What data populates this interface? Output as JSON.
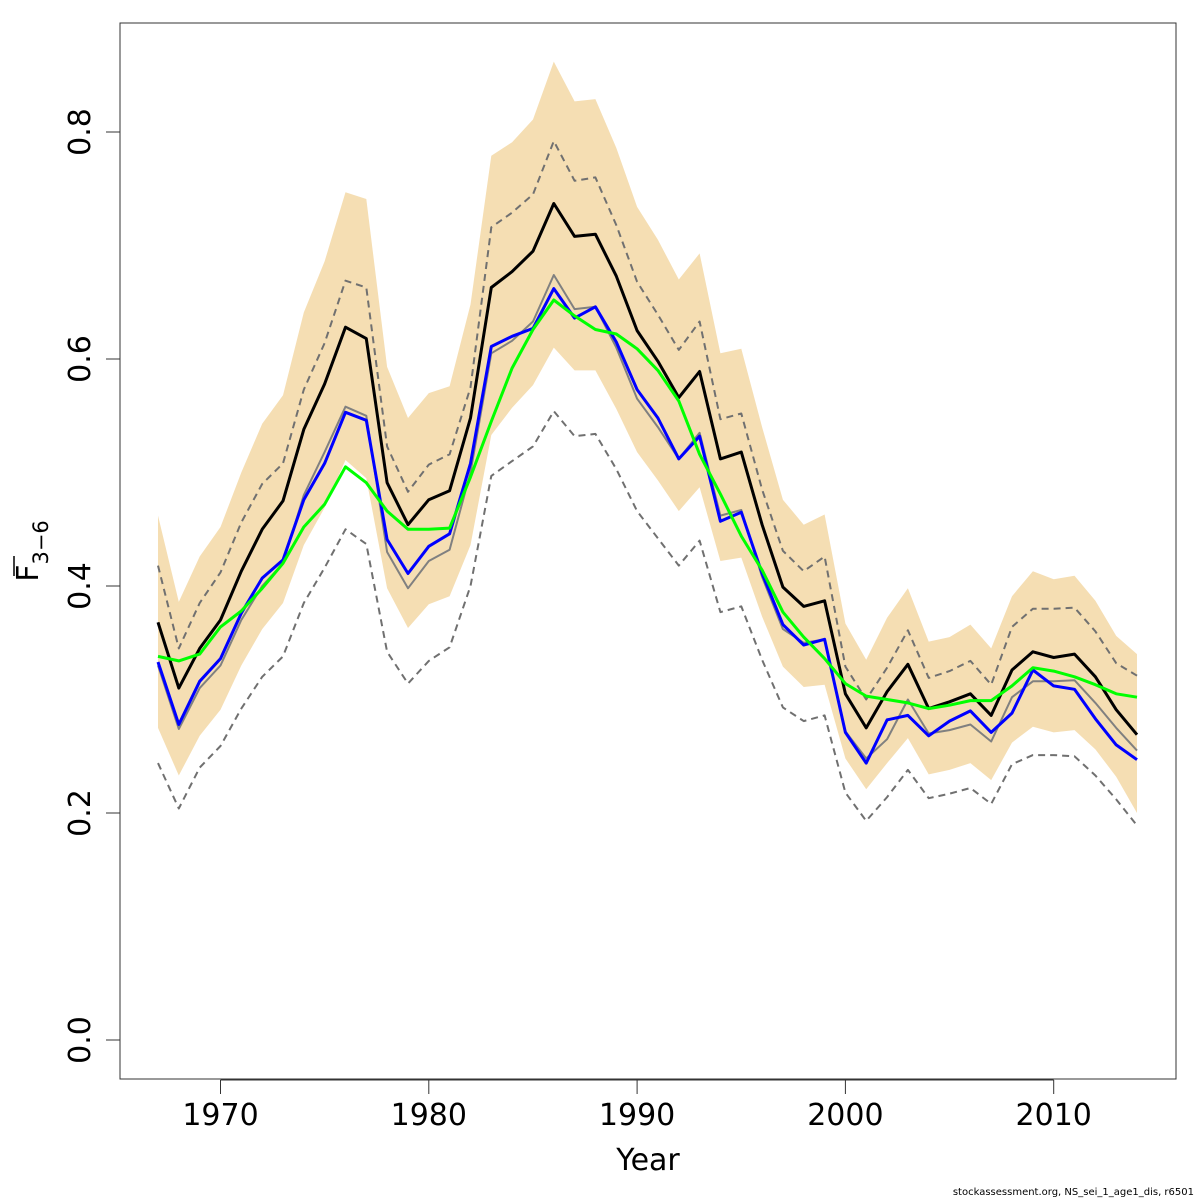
{
  "chart_data": {
    "type": "line",
    "xlabel": "Year",
    "ylabel": {
      "main": "F",
      "subscript": "3−6"
    },
    "xlim": [
      1967,
      2014
    ],
    "ylim": [
      0.0,
      0.8
    ],
    "x_ticks": [
      1970,
      1980,
      1990,
      2000,
      2010
    ],
    "y_ticks": [
      "0.0",
      "0.2",
      "0.4",
      "0.6",
      "0.8"
    ],
    "years": [
      1967,
      1968,
      1969,
      1970,
      1971,
      1972,
      1973,
      1974,
      1975,
      1976,
      1977,
      1978,
      1979,
      1980,
      1981,
      1982,
      1983,
      1984,
      1985,
      1986,
      1987,
      1988,
      1989,
      1990,
      1991,
      1992,
      1993,
      1994,
      1995,
      1996,
      1997,
      1998,
      1999,
      2000,
      2001,
      2002,
      2003,
      2004,
      2005,
      2006,
      2007,
      2008,
      2009,
      2010,
      2011,
      2012,
      2013,
      2014
    ],
    "band": {
      "color": "#f5deb3",
      "upper": [
        0.462,
        0.386,
        0.426,
        0.452,
        0.5,
        0.543,
        0.568,
        0.641,
        0.686,
        0.747,
        0.741,
        0.593,
        0.548,
        0.57,
        0.576,
        0.648,
        0.779,
        0.791,
        0.811,
        0.862,
        0.827,
        0.829,
        0.786,
        0.734,
        0.705,
        0.67,
        0.693,
        0.605,
        0.609,
        0.54,
        0.476,
        0.454,
        0.463,
        0.367,
        0.335,
        0.372,
        0.398,
        0.351,
        0.355,
        0.366,
        0.345,
        0.391,
        0.413,
        0.406,
        0.409,
        0.387,
        0.356,
        0.34
      ],
      "lower": [
        0.275,
        0.233,
        0.268,
        0.291,
        0.33,
        0.362,
        0.385,
        0.436,
        0.469,
        0.511,
        0.495,
        0.398,
        0.363,
        0.384,
        0.391,
        0.436,
        0.533,
        0.557,
        0.577,
        0.61,
        0.59,
        0.59,
        0.556,
        0.518,
        0.493,
        0.466,
        0.487,
        0.422,
        0.425,
        0.373,
        0.329,
        0.311,
        0.313,
        0.248,
        0.221,
        0.244,
        0.266,
        0.234,
        0.238,
        0.244,
        0.229,
        0.262,
        0.276,
        0.271,
        0.273,
        0.256,
        0.232,
        0.2
      ]
    },
    "series": [
      {
        "color": "#707070",
        "dash": true,
        "width": 2,
        "values": [
          0.418,
          0.345,
          0.385,
          0.412,
          0.456,
          0.49,
          0.508,
          0.573,
          0.614,
          0.669,
          0.663,
          0.523,
          0.483,
          0.507,
          0.516,
          0.575,
          0.716,
          0.729,
          0.745,
          0.792,
          0.757,
          0.76,
          0.718,
          0.668,
          0.639,
          0.608,
          0.633,
          0.547,
          0.552,
          0.485,
          0.431,
          0.413,
          0.426,
          0.329,
          0.3,
          0.328,
          0.361,
          0.319,
          0.325,
          0.334,
          0.313,
          0.364,
          0.38,
          0.38,
          0.381,
          0.36,
          0.332,
          0.321
        ]
      },
      {
        "color": "#707070",
        "dash": true,
        "width": 2,
        "values": [
          0.244,
          0.204,
          0.24,
          0.259,
          0.292,
          0.32,
          0.338,
          0.385,
          0.416,
          0.45,
          0.437,
          0.342,
          0.314,
          0.334,
          0.346,
          0.4,
          0.497,
          0.51,
          0.523,
          0.554,
          0.532,
          0.534,
          0.503,
          0.466,
          0.442,
          0.418,
          0.44,
          0.377,
          0.382,
          0.335,
          0.293,
          0.281,
          0.286,
          0.218,
          0.193,
          0.214,
          0.238,
          0.213,
          0.217,
          0.222,
          0.208,
          0.243,
          0.251,
          0.251,
          0.25,
          0.233,
          0.212,
          0.189
        ]
      },
      {
        "color": "#808080",
        "dash": false,
        "width": 2,
        "values": [
          0.33,
          0.274,
          0.31,
          0.33,
          0.37,
          0.4,
          0.42,
          0.48,
          0.518,
          0.558,
          0.55,
          0.43,
          0.398,
          0.422,
          0.432,
          0.5,
          0.605,
          0.616,
          0.633,
          0.674,
          0.644,
          0.646,
          0.61,
          0.565,
          0.54,
          0.512,
          0.535,
          0.462,
          0.467,
          0.408,
          0.362,
          0.35,
          0.353,
          0.272,
          0.248,
          0.265,
          0.3,
          0.27,
          0.273,
          0.278,
          0.263,
          0.302,
          0.316,
          0.316,
          0.317,
          0.297,
          0.275,
          0.255
        ]
      },
      {
        "color": "#000000",
        "dash": false,
        "width": 3,
        "values": [
          0.368,
          0.31,
          0.345,
          0.37,
          0.413,
          0.45,
          0.475,
          0.538,
          0.578,
          0.628,
          0.618,
          0.491,
          0.454,
          0.476,
          0.484,
          0.548,
          0.663,
          0.677,
          0.695,
          0.737,
          0.708,
          0.71,
          0.673,
          0.625,
          0.598,
          0.566,
          0.589,
          0.512,
          0.518,
          0.454,
          0.399,
          0.382,
          0.387,
          0.305,
          0.275,
          0.307,
          0.331,
          0.292,
          0.298,
          0.305,
          0.286,
          0.326,
          0.342,
          0.337,
          0.34,
          0.32,
          0.291,
          0.269
        ]
      },
      {
        "color": "#0000ff",
        "dash": false,
        "width": 3,
        "values": [
          0.333,
          0.278,
          0.316,
          0.336,
          0.376,
          0.407,
          0.423,
          0.476,
          0.508,
          0.553,
          0.546,
          0.441,
          0.411,
          0.435,
          0.446,
          0.508,
          0.611,
          0.62,
          0.627,
          0.662,
          0.636,
          0.646,
          0.615,
          0.573,
          0.548,
          0.512,
          0.532,
          0.457,
          0.465,
          0.411,
          0.366,
          0.348,
          0.353,
          0.271,
          0.244,
          0.282,
          0.286,
          0.268,
          0.281,
          0.29,
          0.271,
          0.288,
          0.326,
          0.312,
          0.309,
          0.283,
          0.26,
          0.247
        ]
      },
      {
        "color": "#00ff00",
        "dash": false,
        "width": 3,
        "values": [
          0.338,
          0.334,
          0.34,
          0.364,
          0.378,
          0.398,
          0.42,
          0.452,
          0.472,
          0.505,
          0.491,
          0.466,
          0.45,
          0.45,
          0.451,
          0.496,
          0.545,
          0.592,
          0.626,
          0.652,
          0.638,
          0.626,
          0.622,
          0.609,
          0.59,
          0.563,
          0.516,
          0.481,
          0.444,
          0.414,
          0.377,
          0.355,
          0.336,
          0.314,
          0.303,
          0.3,
          0.297,
          0.292,
          0.295,
          0.299,
          0.299,
          0.312,
          0.328,
          0.325,
          0.32,
          0.313,
          0.305,
          0.302
        ]
      }
    ]
  },
  "footer": "stockassessment.org, NS_sei_1_age1_dis, r6501"
}
